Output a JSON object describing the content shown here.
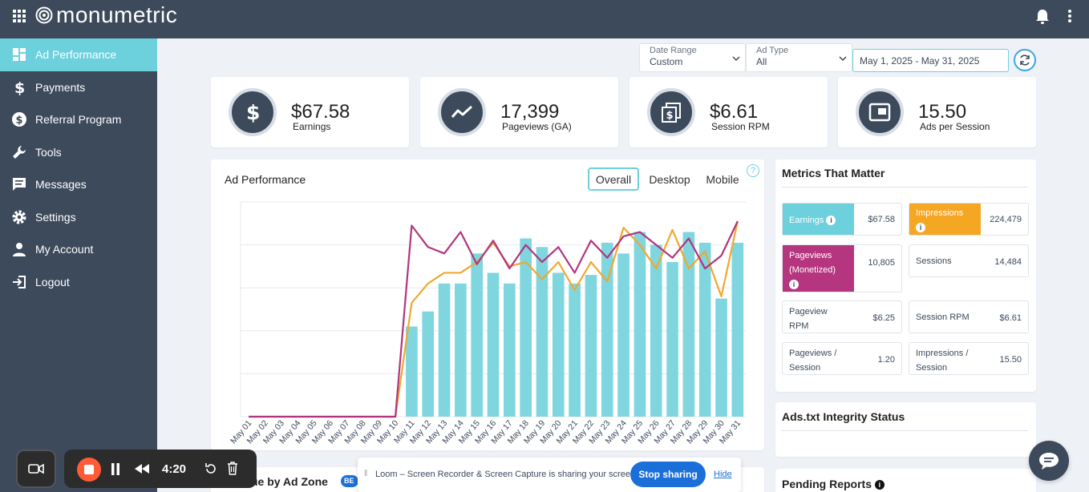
{
  "app": {
    "logo_text": "monumetric"
  },
  "sidebar": {
    "items": [
      {
        "label": "Ad Performance",
        "icon": "dashboard-icon",
        "active": true
      },
      {
        "label": "Payments",
        "icon": "dollar-icon"
      },
      {
        "label": "Referral Program",
        "icon": "dollar-circle-icon"
      },
      {
        "label": "Tools",
        "icon": "wrench-icon"
      },
      {
        "label": "Messages",
        "icon": "message-icon"
      },
      {
        "label": "Settings",
        "icon": "gear-icon"
      },
      {
        "label": "My Account",
        "icon": "user-icon"
      },
      {
        "label": "Logout",
        "icon": "logout-icon"
      }
    ]
  },
  "filters": {
    "date_range": {
      "label": "Date Range",
      "value": "Custom"
    },
    "ad_type": {
      "label": "Ad Type",
      "value": "All"
    },
    "dates": "May 1, 2025 - May 31, 2025"
  },
  "stats": [
    {
      "value": "$67.58",
      "label": "Earnings",
      "icon": "dollar-icon"
    },
    {
      "value": "17,399",
      "label": "Pageviews (GA)",
      "icon": "trend-icon"
    },
    {
      "value": "$6.61",
      "label": "Session RPM",
      "icon": "money-stack-icon"
    },
    {
      "value": "15.50",
      "label": "Ads per Session",
      "icon": "ad-window-icon"
    }
  ],
  "performance": {
    "title": "Ad Performance",
    "tabs": [
      "Overall",
      "Desktop",
      "Mobile"
    ],
    "active_tab": "Overall"
  },
  "metrics": {
    "title": "Metrics That Matter",
    "rows": [
      {
        "label": "Earnings",
        "value": "$67.58",
        "color": "#6cd0dd",
        "info": true
      },
      {
        "label": "Impressions",
        "value": "224,479",
        "color": "#f5a623",
        "info": true
      },
      {
        "label": "Pageviews (Monetized)",
        "value": "10,805",
        "color": "#b5357e",
        "info": true
      },
      {
        "label": "Sessions",
        "value": "14,484"
      },
      {
        "label": "Pageview RPM",
        "value": "$6.25"
      },
      {
        "label": "Session RPM",
        "value": "$6.61"
      },
      {
        "label": "Pageviews / Session",
        "value": "1.20"
      },
      {
        "label": "Impressions / Session",
        "value": "15.50"
      }
    ]
  },
  "ads_txt": {
    "title": "Ads.txt Integrity Status"
  },
  "pending_reports": {
    "title": "Pending Reports"
  },
  "revenue_zone": {
    "title": "ue by Ad Zone",
    "badge": "BE"
  },
  "loom": {
    "time": "4:20",
    "banner_text": "Loom – Screen Recorder & Screen Capture is sharing your screen.",
    "stop_label": "Stop sharing",
    "hide_label": "Hide"
  },
  "chart_data": {
    "type": "bar",
    "categories": [
      "May 01",
      "May 02",
      "May 03",
      "May 04",
      "May 05",
      "May 06",
      "May 07",
      "May 08",
      "May 09",
      "May 10",
      "May 11",
      "May 12",
      "May 13",
      "May 14",
      "May 15",
      "May 16",
      "May 17",
      "May 18",
      "May 19",
      "May 20",
      "May 21",
      "May 22",
      "May 23",
      "May 24",
      "May 25",
      "May 26",
      "May 27",
      "May 28",
      "May 29",
      "May 30",
      "May 31"
    ],
    "series": [
      {
        "kind": "bar",
        "color": "#7fd6df",
        "values": [
          0,
          0,
          0,
          0,
          0,
          0,
          0,
          0,
          0,
          0,
          42,
          49,
          62,
          62,
          76,
          67,
          62,
          83,
          79,
          67,
          62,
          66,
          81,
          76,
          86,
          80,
          72,
          86,
          81,
          55,
          81
        ]
      },
      {
        "kind": "line",
        "color": "#f0a830",
        "values": [
          0,
          0,
          0,
          0,
          0,
          0,
          0,
          0,
          0,
          0,
          53,
          62,
          67,
          67,
          72,
          81,
          70,
          72,
          64,
          72,
          59,
          72,
          63,
          88,
          80,
          69,
          87,
          69,
          77,
          56,
          91
        ]
      },
      {
        "kind": "line",
        "color": "#b0357f",
        "values": [
          0,
          0,
          0,
          0,
          0,
          0,
          0,
          0,
          0,
          0,
          89,
          79,
          76,
          86,
          71,
          82,
          69,
          80,
          72,
          79,
          67,
          82,
          74,
          84,
          86,
          80,
          74,
          83,
          69,
          75,
          91
        ]
      }
    ],
    "ylim": [
      0,
      100
    ],
    "grid": true
  }
}
